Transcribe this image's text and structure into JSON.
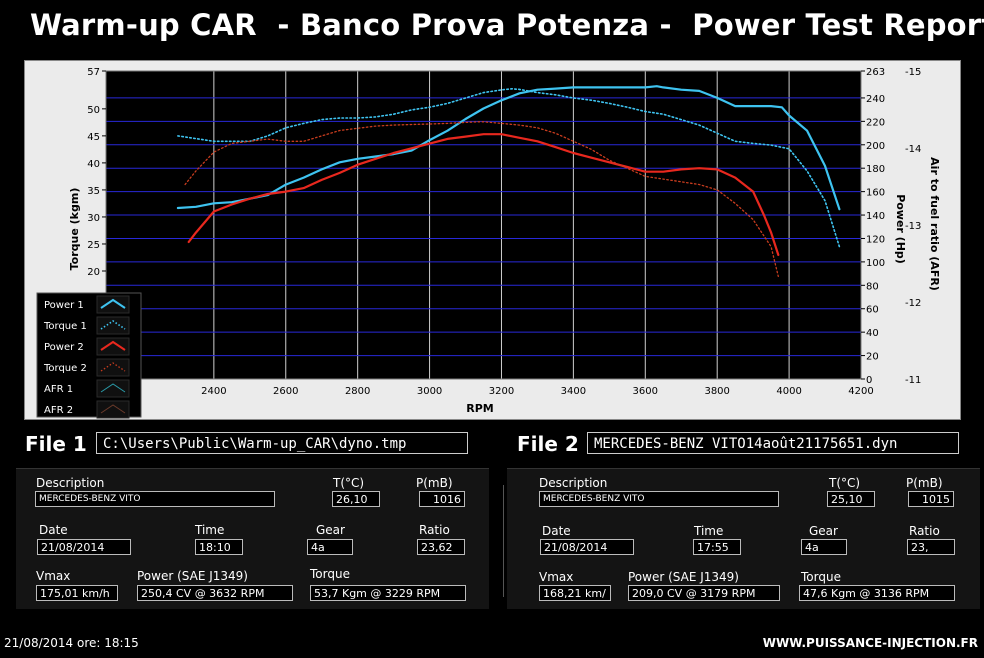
{
  "title": "Warm-up CAR  - Banco Prova Potenza -  Power Test Report",
  "files": {
    "file1_label": "File 1",
    "file1_path": "C:\\Users\\Public\\Warm-up_CAR\\dyno.tmp",
    "file2_label": "File 2",
    "file2_path": "MERCEDES-BENZ VITO14août21175651.dyn"
  },
  "panels": [
    {
      "description_label": "Description",
      "description": "MERCEDES-BENZ VITO",
      "temp_label": "T(°C)",
      "temp": "26,10",
      "pressure_label": "P(mB)",
      "pressure": "1016",
      "date_label": "Date",
      "date": "21/08/2014",
      "time_label": "Time",
      "time": "18:10",
      "gear_label": "Gear",
      "gear": "4a",
      "ratio_label": "Ratio",
      "ratio": "23,62",
      "vmax_label": "Vmax",
      "vmax": "175,01 km/h",
      "power_label": "Power (SAE J1349)",
      "power": "250,4 CV  @ 3632  RPM",
      "torque_label": "Torque",
      "torque": "53,7 Kgm  @ 3229  RPM"
    },
    {
      "description_label": "Description",
      "description": "MERCEDES-BENZ VITO",
      "temp_label": "T(°C)",
      "temp": "25,10",
      "pressure_label": "P(mB)",
      "pressure": "1015",
      "date_label": "Date",
      "date": "21/08/2014",
      "time_label": "Time",
      "time": "17:55",
      "gear_label": "Gear",
      "gear": "4a",
      "ratio_label": "Ratio",
      "ratio": "23,",
      "vmax_label": "Vmax",
      "vmax": "168,21 km/",
      "power_label": "Power (SAE J1349)",
      "power": "209,0 CV  @ 3179  RPM",
      "torque_label": "Torque",
      "torque": "47,6 Kgm  @ 3136  RPM"
    }
  ],
  "footer": {
    "datetime": "21/08/2014  ore: 18:15",
    "website": "WWW.PUISSANCE-INJECTION.FR"
  },
  "colors": {
    "run1": "#3ec3f0",
    "run2": "#e8281e",
    "run1_torque": "#2f87d8",
    "run2_torque": "#c83c1e",
    "grid": "#2828d8",
    "plot_bg": "#000000"
  },
  "chart_data": {
    "type": "line",
    "xlabel": "RPM",
    "ylabel_left": "Torque (kgm)",
    "ylabel_right1": "Power (Hp)",
    "ylabel_right2": "Air to fuel ratio (AFR)",
    "xlim": [
      2200,
      4200
    ],
    "x_ticks": [
      2400,
      2600,
      2800,
      3000,
      3200,
      3400,
      3600,
      3800,
      4000,
      4200
    ],
    "torque_ticks": [
      57,
      50,
      45,
      40,
      35,
      30,
      25,
      20
    ],
    "torque_ylim": [
      15,
      57
    ],
    "power_ticks": [
      263,
      240,
      220,
      200,
      180,
      160,
      140,
      120,
      100,
      80,
      60,
      40,
      20,
      0
    ],
    "power_ylim": [
      0,
      263
    ],
    "afr_ticks": [
      -15,
      -14,
      -13,
      -12,
      -11
    ],
    "afr_ylim": [
      -15,
      -11
    ],
    "grid": true,
    "legend": {
      "position": "bottom-left",
      "entries": [
        "Power 1",
        "Torque 1",
        "Power 2",
        "Torque 2",
        "AFR 1",
        "AFR 2"
      ]
    },
    "series": [
      {
        "name": "Power 1",
        "axis": "power",
        "style": "solid",
        "x": [
          2300,
          2350,
          2400,
          2450,
          2500,
          2550,
          2600,
          2650,
          2700,
          2750,
          2800,
          2850,
          2900,
          2950,
          3000,
          3050,
          3100,
          3150,
          3200,
          3250,
          3300,
          3350,
          3400,
          3450,
          3500,
          3550,
          3600,
          3632,
          3650,
          3700,
          3750,
          3800,
          3850,
          3900,
          3950,
          3980,
          4000,
          4050,
          4100,
          4140
        ],
        "y": [
          146,
          147,
          150,
          151,
          154,
          157,
          166,
          172,
          179,
          185,
          188,
          190,
          192,
          195,
          204,
          212,
          222,
          231,
          238,
          244,
          247,
          248,
          249,
          249,
          249,
          249,
          249,
          250,
          249,
          247,
          246,
          240,
          233,
          233,
          233,
          232,
          225,
          212,
          182,
          145
        ]
      },
      {
        "name": "Torque 1",
        "axis": "torque",
        "style": "dotted",
        "x": [
          2300,
          2350,
          2400,
          2450,
          2500,
          2550,
          2600,
          2650,
          2700,
          2750,
          2800,
          2850,
          2900,
          2950,
          3000,
          3050,
          3100,
          3150,
          3200,
          3229,
          3250,
          3300,
          3350,
          3400,
          3450,
          3500,
          3550,
          3600,
          3650,
          3700,
          3750,
          3800,
          3850,
          3900,
          3950,
          4000,
          4050,
          4100,
          4140
        ],
        "y": [
          45.0,
          44.5,
          44.0,
          44.0,
          44.0,
          45.0,
          46.5,
          47.3,
          48.0,
          48.3,
          48.3,
          48.5,
          49.0,
          49.8,
          50.3,
          51.0,
          52.0,
          53.0,
          53.5,
          53.7,
          53.6,
          53.0,
          52.6,
          52.0,
          51.6,
          51.0,
          50.3,
          49.5,
          49.0,
          48.0,
          47.0,
          45.5,
          44.0,
          43.6,
          43.3,
          42.6,
          38.5,
          33.0,
          24.5
        ]
      },
      {
        "name": "Power 2",
        "axis": "power",
        "style": "solid",
        "x": [
          2330,
          2350,
          2400,
          2450,
          2500,
          2550,
          2600,
          2650,
          2700,
          2750,
          2800,
          2850,
          2900,
          2950,
          3000,
          3050,
          3100,
          3150,
          3179,
          3200,
          3250,
          3300,
          3350,
          3400,
          3450,
          3500,
          3550,
          3600,
          3650,
          3700,
          3750,
          3800,
          3850,
          3900,
          3930,
          3950,
          3970
        ],
        "y": [
          117,
          125,
          143,
          149,
          154,
          158,
          160,
          163,
          170,
          176,
          183,
          188,
          193,
          197,
          201,
          205,
          207,
          209,
          209,
          209,
          206,
          203,
          198,
          193,
          189,
          185,
          181,
          177,
          177,
          179,
          180,
          179,
          172,
          160,
          140,
          125,
          106
        ]
      },
      {
        "name": "Torque 2",
        "axis": "torque",
        "style": "dotted",
        "x": [
          2320,
          2350,
          2400,
          2450,
          2500,
          2550,
          2600,
          2650,
          2700,
          2750,
          2800,
          2850,
          2900,
          2950,
          3000,
          3050,
          3100,
          3136,
          3150,
          3200,
          3250,
          3300,
          3350,
          3400,
          3450,
          3500,
          3550,
          3600,
          3650,
          3700,
          3750,
          3800,
          3850,
          3900,
          3950,
          3970
        ],
        "y": [
          36.0,
          38.5,
          42.0,
          43.6,
          44.0,
          44.4,
          44.0,
          44.0,
          45.0,
          46.0,
          46.4,
          46.8,
          47.0,
          47.1,
          47.2,
          47.3,
          47.5,
          47.6,
          47.6,
          47.3,
          47.0,
          46.5,
          45.5,
          44.0,
          42.5,
          40.5,
          39.0,
          37.5,
          37.0,
          36.5,
          36.0,
          35.0,
          32.5,
          29.5,
          24.5,
          19.0
        ]
      }
    ]
  }
}
